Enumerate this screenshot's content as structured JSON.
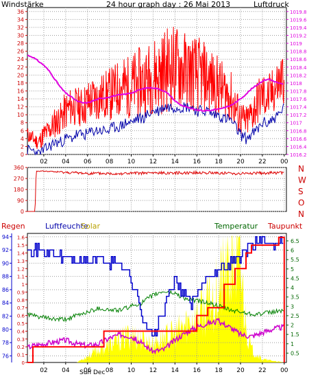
{
  "colors": {
    "wind": "#ff0000",
    "gust": "#0000aa",
    "pressure": "#e000e0",
    "direction": "#dd0000",
    "rain": "#ff0000",
    "humidity": "#0000cc",
    "solar": "#ffff00",
    "temperature": "#008000",
    "dewpoint": "#cc00cc",
    "grid": "#9a9a9a"
  },
  "chart_data": [
    {
      "type": "line",
      "title": "24 hour graph day : 26 Mai 2013",
      "left_label": "Windstärke",
      "right_label": "Luftdruck",
      "x_ticks": [
        "02",
        "04",
        "06",
        "08",
        "10",
        "12",
        "14",
        "16",
        "18",
        "20",
        "22",
        "00"
      ],
      "y_left_ticks": [
        "0",
        "2",
        "4",
        "6",
        "8",
        "10",
        "12",
        "14",
        "16",
        "18",
        "20",
        "22",
        "24",
        "26",
        "28",
        "30",
        "32",
        "34",
        "36"
      ],
      "y_right_ticks": [
        "1016.2",
        "1016.4",
        "1016.6",
        "1016.8",
        "1017",
        "1017.2",
        "1017.4",
        "1017.6",
        "1017.8",
        "1018",
        "1018.2",
        "1018.4",
        "1018.6",
        "1018.8",
        "1019",
        "1019.2",
        "1019.4",
        "1019.6",
        "1019.8"
      ],
      "ylim_left": [
        0,
        37
      ],
      "ylim_right": [
        1016.2,
        1019.9
      ],
      "xlim_hours": [
        0.5,
        24.2
      ],
      "series": [
        {
          "key": "wind",
          "x": [
            0.5,
            1.0,
            1.5,
            2.0,
            2.5,
            3.0,
            3.5,
            4.0,
            4.5,
            5.0,
            5.5,
            6.0,
            6.5,
            7.0,
            7.5,
            8.0,
            8.5,
            9.0,
            9.5,
            10.0,
            10.5,
            11.0,
            11.5,
            12.0,
            12.5,
            13.0,
            13.5,
            14.0,
            14.5,
            15.0,
            15.5,
            16.0,
            16.5,
            17.0,
            17.5,
            18.0,
            18.5,
            19.0,
            19.5,
            20.0,
            20.5,
            21.0,
            21.5,
            22.0,
            22.5,
            23.0,
            23.5,
            24.0
          ],
          "values": [
            5,
            4,
            3,
            5,
            6,
            8,
            9,
            11,
            12,
            12,
            12,
            13,
            14,
            14,
            15,
            15,
            16,
            17,
            17,
            17,
            18,
            18,
            19,
            20,
            20,
            21,
            22,
            22,
            22,
            21,
            21,
            20,
            20,
            19,
            18,
            17,
            16,
            15,
            12,
            9,
            8,
            10,
            13,
            15,
            14,
            16,
            18,
            20
          ],
          "amplitude": [
            2,
            2,
            2,
            3,
            3,
            4,
            4,
            5,
            5,
            5,
            5,
            6,
            6,
            6,
            6,
            7,
            7,
            8,
            8,
            8,
            9,
            9,
            9,
            10,
            10,
            11,
            11,
            11,
            11,
            10,
            10,
            10,
            9,
            9,
            8,
            8,
            7,
            7,
            6,
            5,
            4,
            5,
            6,
            6,
            6,
            6,
            7,
            7
          ]
        },
        {
          "key": "gust",
          "x": [
            0.5,
            1.0,
            1.5,
            2.0,
            2.5,
            3.0,
            3.5,
            4.0,
            4.5,
            5.0,
            5.5,
            6.0,
            6.5,
            7.0,
            7.5,
            8.0,
            8.5,
            9.0,
            9.5,
            10.0,
            10.5,
            11.0,
            11.5,
            12.0,
            12.5,
            13.0,
            13.5,
            14.0,
            14.5,
            15.0,
            15.5,
            16.0,
            16.5,
            17.0,
            17.5,
            18.0,
            18.5,
            19.0,
            19.5,
            20.0,
            20.5,
            21.0,
            21.5,
            22.0,
            22.5,
            23.0,
            23.5,
            24.0
          ],
          "values": [
            1,
            1,
            0,
            1,
            2,
            3,
            3,
            4,
            4,
            5,
            5,
            5,
            6,
            6,
            6,
            6,
            7,
            7,
            8,
            8,
            9,
            9,
            10,
            11,
            11,
            12,
            12,
            12,
            12,
            12,
            12,
            11,
            11,
            11,
            10,
            10,
            9,
            9,
            7,
            5,
            4,
            5,
            6,
            8,
            8,
            9,
            10,
            12
          ]
        },
        {
          "key": "pressure",
          "x": [
            0.5,
            1.0,
            1.5,
            2.0,
            2.5,
            3.0,
            3.5,
            4.0,
            4.5,
            5.0,
            5.5,
            6.0,
            6.5,
            7.0,
            7.5,
            8.0,
            8.5,
            9.0,
            9.5,
            10.0,
            10.5,
            11.0,
            11.5,
            12.0,
            12.5,
            13.0,
            13.5,
            14.0,
            14.5,
            15.0,
            15.5,
            16.0,
            16.5,
            17.0,
            17.5,
            18.0,
            18.5,
            19.0,
            19.5,
            20.0,
            20.5,
            21.0,
            21.5,
            22.0,
            22.5,
            23.0,
            23.5,
            24.0
          ],
          "values": [
            1018.7,
            1018.65,
            1018.55,
            1018.45,
            1018.3,
            1018.1,
            1017.9,
            1017.75,
            1017.65,
            1017.55,
            1017.5,
            1017.5,
            1017.55,
            1017.6,
            1017.62,
            1017.65,
            1017.68,
            1017.7,
            1017.72,
            1017.75,
            1017.8,
            1017.85,
            1017.88,
            1017.88,
            1017.85,
            1017.8,
            1017.7,
            1017.55,
            1017.45,
            1017.4,
            1017.35,
            1017.32,
            1017.3,
            1017.3,
            1017.32,
            1017.35,
            1017.38,
            1017.42,
            1017.5,
            1017.6,
            1017.72,
            1017.85,
            1017.95,
            1018.05,
            1018.1,
            1018.05,
            1018.0,
            1017.95
          ]
        }
      ]
    },
    {
      "type": "line",
      "title": "",
      "left_ticks": [
        "0",
        "90",
        "180",
        "270",
        "360"
      ],
      "right_labels": [
        "N",
        "W",
        "S",
        "O",
        "N"
      ],
      "ylim": [
        0,
        360
      ],
      "xlim_hours": [
        0.5,
        24.2
      ],
      "series": [
        {
          "key": "direction",
          "x": [
            0.5,
            1.2,
            1.3,
            2.0,
            4.0,
            6.0,
            8.0,
            10.0,
            12.0,
            14.0,
            16.0,
            18.0,
            20.0,
            22.0,
            24.0
          ],
          "values": [
            0,
            0,
            330,
            330,
            320,
            312,
            310,
            312,
            315,
            316,
            318,
            315,
            310,
            315,
            318
          ],
          "amplitude": [
            0,
            0,
            3,
            3,
            10,
            12,
            12,
            12,
            12,
            12,
            12,
            12,
            12,
            12,
            12
          ]
        }
      ]
    },
    {
      "type": "line",
      "title": "",
      "labels": {
        "rain": "Regen",
        "humidity": "Luftfeuchte",
        "solar": "Solar",
        "temperature": "Temperatur",
        "dewpoint": "Taupunkt"
      },
      "x_ticks": [
        "02",
        "04",
        "06",
        "08",
        "10",
        "12",
        "14",
        "16",
        "18",
        "20",
        "22",
        "00"
      ],
      "sun_label": "Sun Dec",
      "y_humidity_ticks": [
        "76",
        "78",
        "80",
        "82",
        "84",
        "86",
        "88",
        "90",
        "92",
        "94"
      ],
      "y_rain_ticks": [
        "0",
        "0.1",
        "0.2",
        "0.3",
        "0.4",
        "0.5",
        "0.6",
        "0.7",
        "0.8",
        "0.9",
        "1",
        "1.1",
        "1.2",
        "1.3",
        "1.4",
        "1.5",
        "1.6"
      ],
      "y_temp_ticks": [
        "0.5",
        "1",
        "1.5",
        "2",
        "2.5",
        "3",
        "3.5",
        "4",
        "4.5",
        "5",
        "5.5",
        "6",
        "6.5"
      ],
      "ylim_humidity": [
        75,
        94.5
      ],
      "ylim_rain": [
        0,
        1.65
      ],
      "ylim_temp": [
        0,
        6.9
      ],
      "xlim_hours": [
        0.5,
        24.2
      ],
      "series": [
        {
          "key": "rain",
          "x": [
            0.5,
            1.0,
            1.0,
            3.5,
            3.5,
            7.5,
            7.5,
            16.0,
            16.0,
            17.0,
            17.0,
            18.5,
            18.5,
            19.5,
            19.5,
            20.5,
            20.5,
            21.0,
            21.0,
            23.5,
            23.5,
            24.0,
            24.0
          ],
          "values": [
            0,
            0,
            0.2,
            0.2,
            0.2,
            0.2,
            0.4,
            0.4,
            0.6,
            0.6,
            0.7,
            0.7,
            1.0,
            1.0,
            1.2,
            1.2,
            1.4,
            1.4,
            1.5,
            1.5,
            1.6,
            1.6,
            0
          ]
        },
        {
          "key": "humidity",
          "x": [
            0.5,
            1.0,
            2.0,
            3.0,
            4.0,
            5.0,
            6.0,
            7.0,
            8.0,
            9.0,
            9.5,
            10.0,
            10.5,
            11.0,
            11.5,
            12.0,
            12.5,
            13.0,
            13.5,
            14.0,
            14.5,
            15.0,
            15.5,
            16.0,
            16.5,
            17.0,
            18.0,
            19.0,
            20.0,
            20.5,
            21.0,
            22.0,
            23.0,
            24.0
          ],
          "values": [
            93,
            92,
            92,
            91,
            91,
            90,
            90,
            91,
            90,
            90,
            89,
            87,
            85,
            82,
            80,
            79,
            81,
            83,
            86,
            87,
            86,
            85,
            84,
            85,
            87,
            88,
            89,
            90,
            91,
            92,
            93,
            93,
            93,
            94
          ]
        },
        {
          "key": "temperature",
          "x": [
            0.5,
            1.0,
            2.0,
            3.0,
            4.0,
            5.0,
            6.0,
            7.0,
            8.0,
            9.0,
            10.0,
            11.0,
            12.0,
            13.0,
            14.0,
            15.0,
            16.0,
            17.0,
            18.0,
            19.0,
            20.0,
            21.0,
            22.0,
            23.0,
            24.0
          ],
          "values": [
            2.6,
            2.5,
            2.4,
            2.3,
            2.3,
            2.5,
            2.7,
            2.9,
            2.8,
            2.8,
            3.0,
            3.2,
            3.6,
            3.8,
            3.7,
            3.4,
            3.3,
            3.2,
            3.0,
            2.8,
            2.7,
            2.6,
            2.6,
            2.7,
            2.8
          ]
        },
        {
          "key": "dewpoint",
          "x": [
            0.5,
            1.0,
            2.0,
            3.0,
            4.0,
            5.0,
            6.0,
            7.0,
            8.0,
            9.0,
            10.0,
            11.0,
            12.0,
            13.0,
            14.0,
            15.0,
            16.0,
            17.0,
            18.0,
            19.0,
            20.0,
            21.0,
            22.0,
            23.0,
            24.0
          ],
          "values": [
            0.8,
            0.9,
            1.0,
            1.1,
            1.2,
            1.0,
            0.9,
            1.0,
            1.3,
            1.5,
            1.4,
            1.0,
            0.6,
            0.7,
            1.2,
            1.6,
            1.9,
            2.1,
            2.2,
            1.9,
            1.5,
            1.4,
            1.6,
            1.8,
            1.9
          ]
        },
        {
          "key": "solar",
          "x": [
            0.5,
            5.0,
            5.5,
            6.0,
            7.0,
            8.0,
            9.0,
            10.0,
            11.0,
            12.0,
            13.0,
            14.0,
            15.0,
            16.0,
            17.0,
            17.5,
            18.0,
            18.5,
            19.0,
            19.5,
            20.0,
            20.5,
            21.0,
            22.0,
            24.0
          ],
          "values": [
            0,
            0,
            0.05,
            0.1,
            0.2,
            0.28,
            0.35,
            0.45,
            0.35,
            0.3,
            0.4,
            0.45,
            0.6,
            0.75,
            0.9,
            1.0,
            1.2,
            1.4,
            1.55,
            1.6,
            1.5,
            0.6,
            0.2,
            0.05,
            0
          ]
        }
      ]
    }
  ]
}
